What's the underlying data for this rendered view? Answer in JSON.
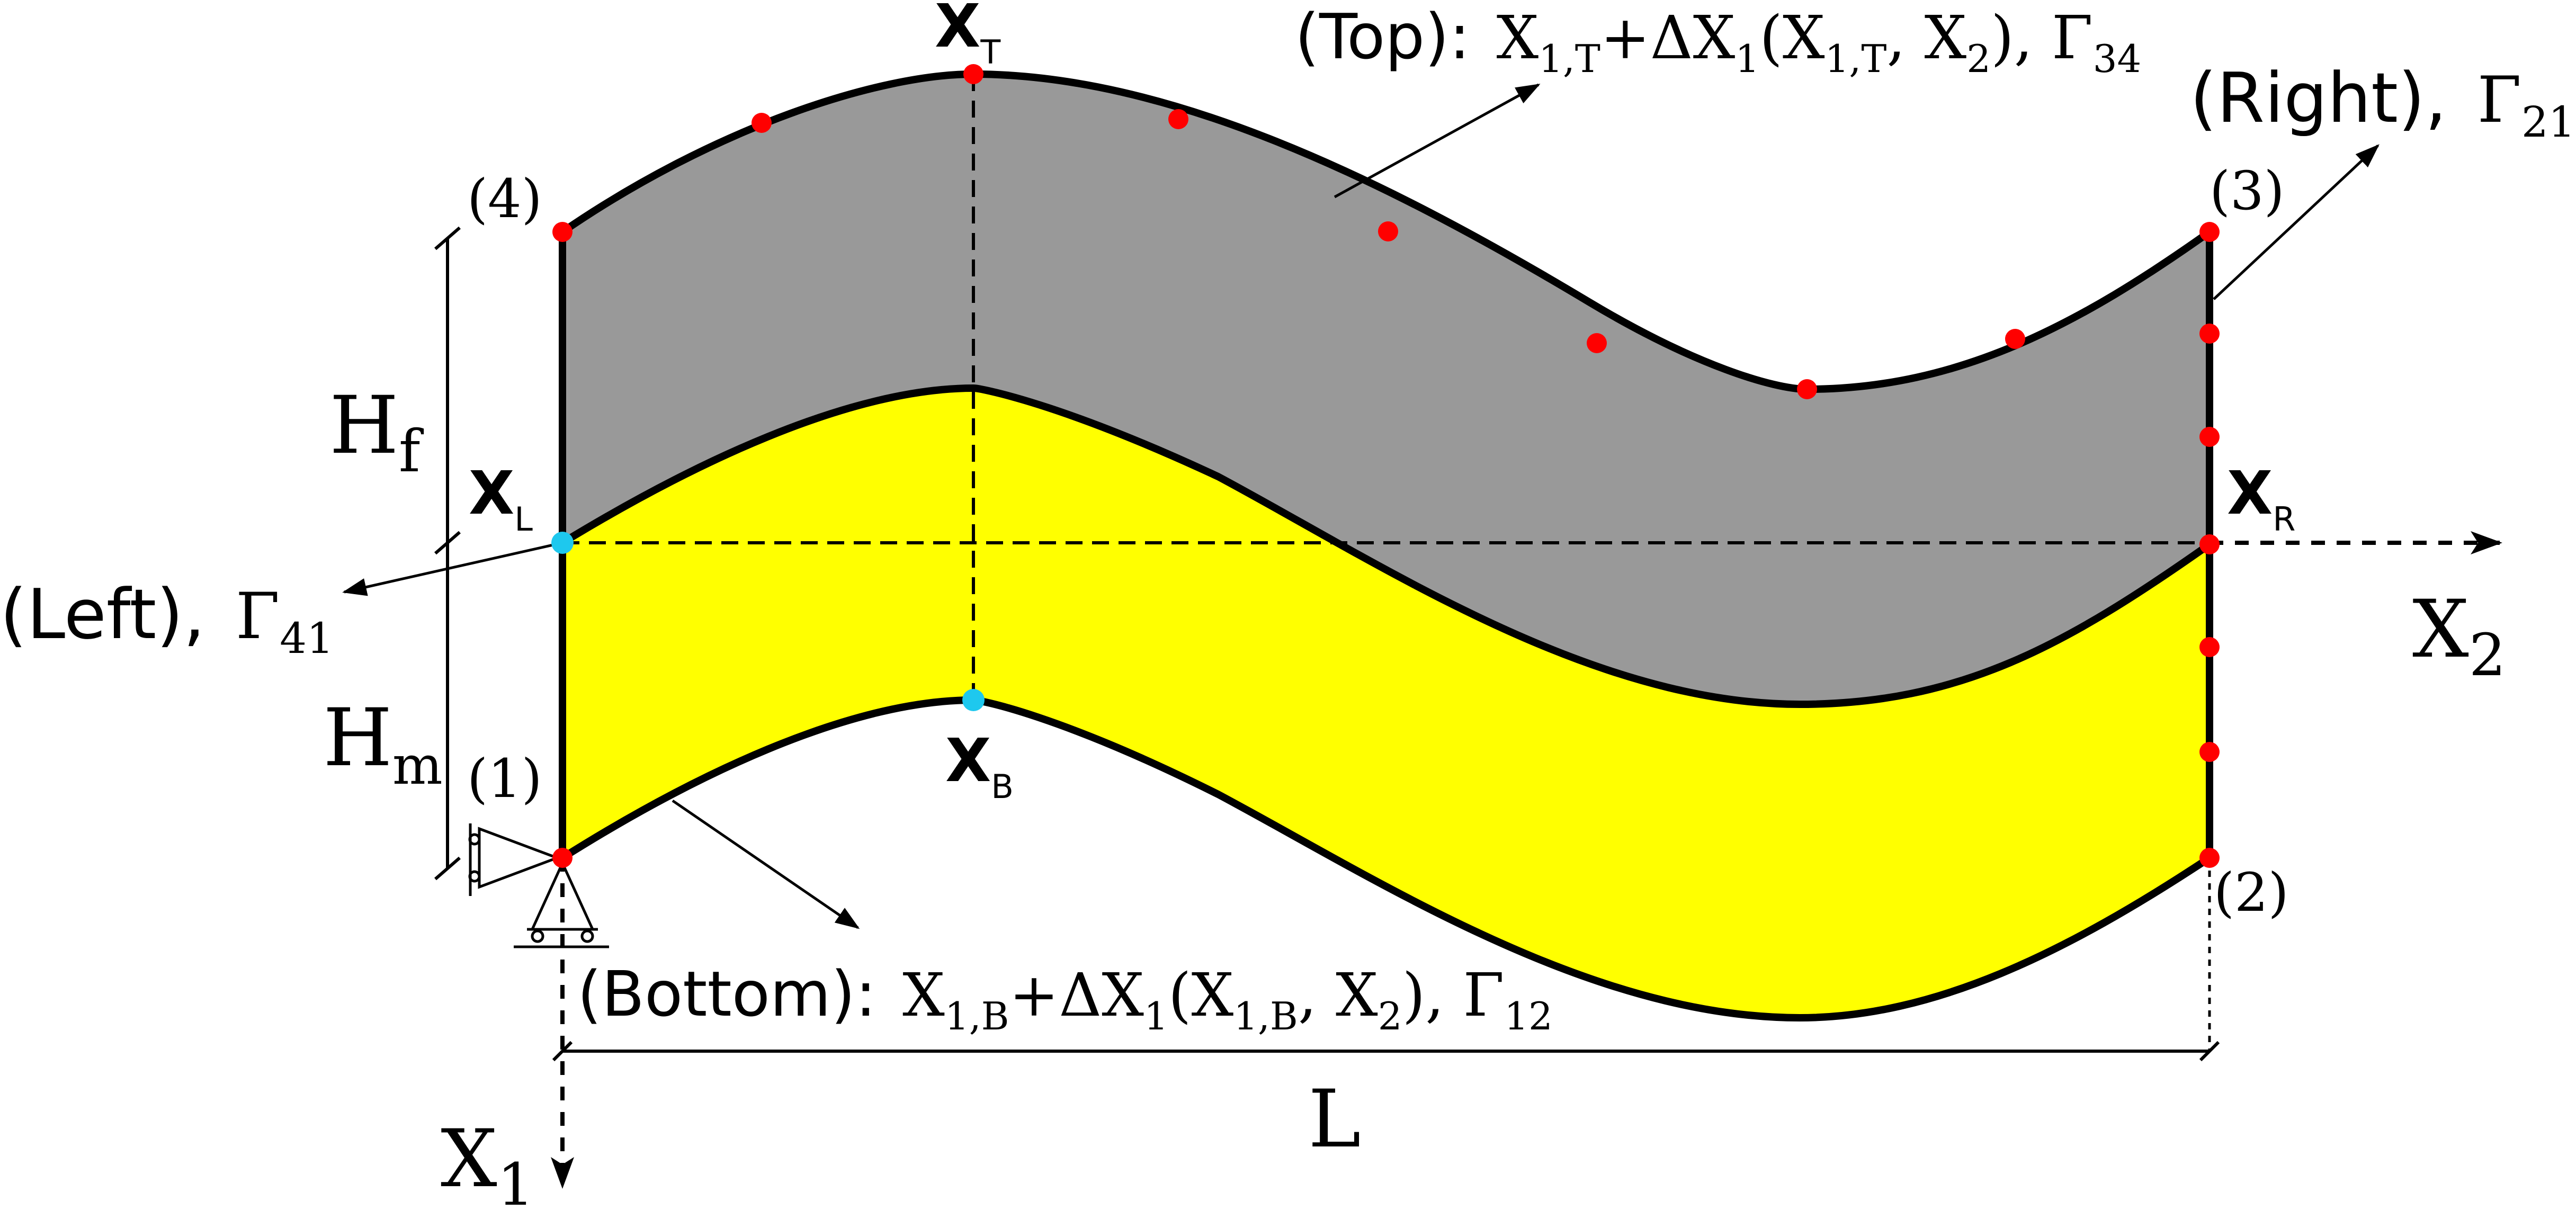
{
  "colors": {
    "fiber_fill": "#999999",
    "matrix_fill": "#ffff00",
    "outline": "#000000",
    "boundary_node": "#ff0000",
    "reference_node": "#1ec8ee"
  },
  "points": {
    "top": {
      "main": "X",
      "sub": "T"
    },
    "bottom": {
      "main": "X",
      "sub": "B"
    },
    "left": {
      "main": "X",
      "sub": "L"
    },
    "right": {
      "main": "X",
      "sub": "R"
    }
  },
  "corners": [
    "(1)",
    "(2)",
    "(3)",
    "(4)"
  ],
  "labels": {
    "top_boundary": {
      "name": "(Top):",
      "expr_1": "X",
      "expr_1_sub": "1,T",
      "expr_2": "+ΔX",
      "expr_2_sub": "1",
      "expr_3": "(X",
      "expr_3_sub": "1,T",
      "expr_4": ", X",
      "expr_4_sub": "2",
      "expr_5": "), Γ",
      "expr_5_sub": "34"
    },
    "bottom_boundary": {
      "name": "(Bottom):",
      "expr_1": "X",
      "expr_1_sub": "1,B",
      "expr_2": "+ΔX",
      "expr_2_sub": "1",
      "expr_3": "(X",
      "expr_3_sub": "1,B",
      "expr_4": ", X",
      "expr_4_sub": "2",
      "expr_5": "), Γ",
      "expr_5_sub": "12"
    },
    "right_boundary": {
      "name": "(Right),",
      "gamma": "Γ",
      "gamma_sub": "21"
    },
    "left_boundary": {
      "name": "(Left),",
      "gamma": "Γ",
      "gamma_sub": "41"
    },
    "height_fiber": {
      "main": "H",
      "sub": "f"
    },
    "height_matrix": {
      "main": "H",
      "sub": "m"
    },
    "length": "L",
    "axis_x1": {
      "main": "X",
      "sub": "1"
    },
    "axis_x2": {
      "main": "X",
      "sub": "2"
    }
  }
}
